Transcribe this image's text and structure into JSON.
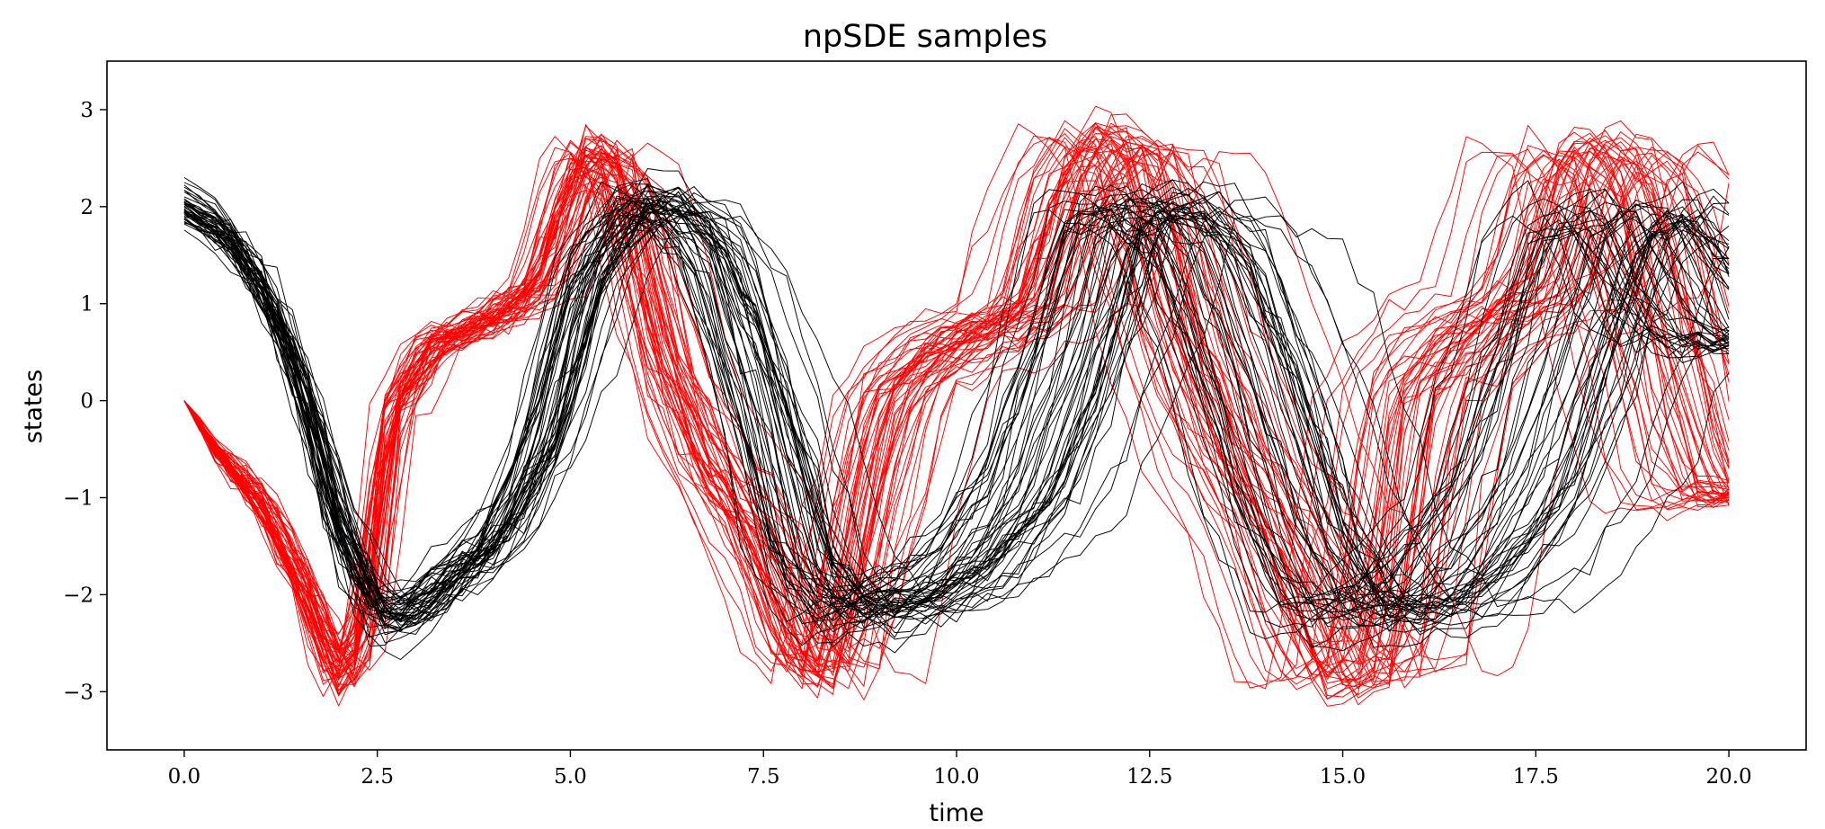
{
  "chart_data": {
    "type": "line",
    "title": "npSDE samples",
    "xlabel": "time",
    "ylabel": "states",
    "xlim": [
      -1.0,
      21.0
    ],
    "ylim": [
      -3.6,
      3.5
    ],
    "x_ticks": [
      0.0,
      2.5,
      5.0,
      7.5,
      10.0,
      12.5,
      15.0,
      17.5,
      20.0
    ],
    "x_tick_labels": [
      "0.0",
      "2.5",
      "5.0",
      "7.5",
      "10.0",
      "12.5",
      "15.0",
      "17.5",
      "20.0"
    ],
    "y_ticks": [
      3,
      2,
      1,
      0,
      -1,
      -2,
      -3
    ],
    "y_tick_labels": [
      "3",
      "2",
      "1",
      "0",
      "−1",
      "−2",
      "−3"
    ],
    "grid": false,
    "legend": "none",
    "samples_per_series": 50,
    "time_step": 0.2,
    "series": [
      {
        "color": "#ff0000",
        "mean": {
          "x": [
            0.0,
            0.5,
            1.0,
            1.5,
            2.0,
            2.3,
            2.7,
            3.2,
            4.0,
            4.6,
            5.2,
            5.7,
            6.2,
            6.8,
            7.4,
            8.0,
            8.4,
            8.8,
            9.2,
            10.0,
            11.0,
            11.5,
            11.9,
            12.4,
            13.0,
            13.6,
            14.2,
            14.6,
            15.0,
            15.5,
            16.0,
            16.5,
            17.0,
            17.6,
            18.0,
            18.3,
            18.8,
            19.3,
            19.7,
            20.0
          ],
          "y": [
            0.0,
            -0.6,
            -1.05,
            -1.85,
            -2.85,
            -2.5,
            -0.1,
            0.55,
            0.85,
            1.2,
            2.6,
            2.3,
            0.5,
            -0.6,
            -1.4,
            -2.6,
            -2.85,
            -1.2,
            0.1,
            0.6,
            0.95,
            2.2,
            2.7,
            2.5,
            0.7,
            -0.5,
            -1.3,
            -2.2,
            -2.9,
            -2.7,
            0.05,
            0.55,
            0.85,
            1.2,
            2.3,
            2.65,
            2.3,
            0.7,
            -0.5,
            -1.0
          ]
        },
        "spread": {
          "x": [
            0.0,
            1.0,
            2.0,
            3.0,
            5.0,
            8.0,
            10.0,
            13.0,
            16.0,
            20.0
          ],
          "y": [
            0.0,
            0.12,
            0.22,
            0.28,
            0.45,
            0.75,
            0.95,
            1.15,
            1.35,
            1.6
          ]
        }
      },
      {
        "color": "#000000",
        "mean": {
          "x": [
            0.0,
            0.5,
            1.0,
            1.5,
            2.0,
            2.5,
            2.8,
            3.2,
            4.0,
            4.6,
            5.2,
            5.8,
            6.2,
            6.8,
            7.4,
            8.0,
            8.6,
            9.0,
            9.5,
            10.0,
            10.8,
            11.5,
            12.0,
            12.6,
            13.2,
            13.8,
            14.4,
            15.0,
            15.5,
            16.0,
            16.6,
            17.2,
            17.8,
            18.3,
            18.8,
            19.2,
            19.6,
            20.0
          ],
          "y": [
            2.0,
            1.75,
            1.2,
            0.2,
            -1.3,
            -2.2,
            -2.25,
            -2.0,
            -1.45,
            -0.5,
            1.3,
            2.0,
            2.05,
            1.6,
            0.2,
            -1.7,
            -2.2,
            -2.15,
            -2.0,
            -1.8,
            -1.0,
            0.5,
            1.9,
            2.05,
            1.6,
            0.3,
            -1.3,
            -2.15,
            -2.2,
            -2.1,
            -1.6,
            -0.9,
            0.5,
            1.7,
            2.0,
            1.6,
            1.0,
            0.6
          ]
        },
        "spread": {
          "x": [
            0.0,
            1.0,
            2.0,
            3.0,
            5.0,
            8.0,
            10.0,
            13.0,
            16.0,
            20.0
          ],
          "y": [
            0.0,
            0.1,
            0.16,
            0.22,
            0.38,
            0.65,
            0.85,
            1.05,
            1.25,
            1.5
          ]
        }
      }
    ]
  }
}
